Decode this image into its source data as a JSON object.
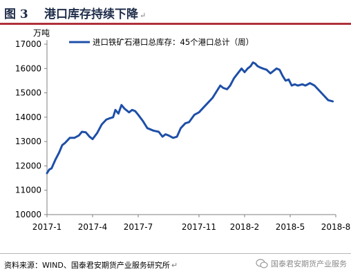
{
  "header": {
    "figure_label": "图 3",
    "title": "港口库存持续下降",
    "paragraph_mark": "↵"
  },
  "source": {
    "text": "资料来源：WIND、国泰君安期货产业服务研究所",
    "paragraph_mark": "↵"
  },
  "watermark": {
    "text": "国泰君安期货产业服务",
    "icon": "wechat-icon"
  },
  "colors": {
    "series": "#1e4fa8",
    "axis": "#7f7f7f",
    "accent": "#b0303a"
  },
  "chart_data": {
    "type": "line",
    "title": "",
    "xlabel": "",
    "ylabel": "万吨",
    "ylim": [
      10000,
      17000
    ],
    "yticks": [
      10000,
      11000,
      12000,
      13000,
      14000,
      15000,
      16000,
      17000
    ],
    "xlim": [
      0,
      19
    ],
    "xtick_positions": [
      0,
      3,
      6,
      10,
      13,
      16,
      19
    ],
    "xtick_labels": [
      "2017-1",
      "2017-4",
      "2017-7",
      "2017-11",
      "2018-2",
      "2018-5",
      "2018-8"
    ],
    "grid": false,
    "legend": "top-left",
    "series": [
      {
        "name": "进口铁矿石港口总库存：45个港口总计（周）",
        "x": [
          0.0,
          0.15,
          0.3,
          0.55,
          0.8,
          1.0,
          1.2,
          1.5,
          1.8,
          2.1,
          2.3,
          2.55,
          2.8,
          3.0,
          3.3,
          3.6,
          3.9,
          4.1,
          4.35,
          4.5,
          4.7,
          4.9,
          5.1,
          5.4,
          5.6,
          5.8,
          6.0,
          6.3,
          6.6,
          7.0,
          7.35,
          7.6,
          7.8,
          8.0,
          8.3,
          8.55,
          8.8,
          9.1,
          9.35,
          9.7,
          10.0,
          10.3,
          10.6,
          10.9,
          11.2,
          11.4,
          11.6,
          11.85,
          12.05,
          12.3,
          12.55,
          12.8,
          13.0,
          13.2,
          13.4,
          13.55,
          13.7,
          13.85,
          14.0,
          14.2,
          14.45,
          14.7,
          14.9,
          15.1,
          15.3,
          15.5,
          15.7,
          15.9,
          16.1,
          16.3,
          16.5,
          16.8,
          17.0,
          17.3,
          17.6,
          17.9,
          18.2,
          18.5,
          18.8
        ],
        "y": [
          11700,
          11850,
          11900,
          12250,
          12550,
          12850,
          12950,
          13150,
          13150,
          13250,
          13400,
          13380,
          13200,
          13100,
          13350,
          13700,
          13900,
          13950,
          14000,
          14300,
          14150,
          14500,
          14350,
          14200,
          14300,
          14250,
          14100,
          13850,
          13550,
          13450,
          13400,
          13200,
          13300,
          13250,
          13150,
          13200,
          13550,
          13750,
          13800,
          14100,
          14200,
          14400,
          14600,
          14800,
          15100,
          15300,
          15200,
          15150,
          15300,
          15600,
          15800,
          16000,
          15850,
          16000,
          16100,
          16250,
          16200,
          16100,
          16050,
          16000,
          15950,
          15800,
          15900,
          16000,
          15950,
          15700,
          15500,
          15550,
          15300,
          15350,
          15300,
          15350,
          15300,
          15400,
          15300,
          15100,
          14900,
          14700,
          14650
        ]
      }
    ]
  }
}
